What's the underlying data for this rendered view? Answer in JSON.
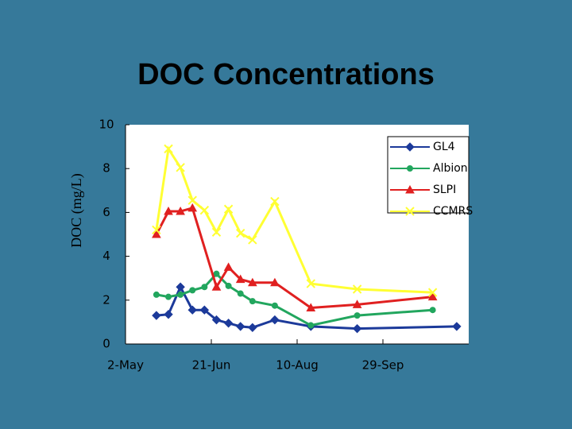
{
  "chart_data": {
    "type": "line",
    "title": "DOC Concentrations",
    "y_label": "DOC (mg/L)",
    "xlim": [
      "2-May",
      "18-Nov"
    ],
    "xticks": [
      "2-May",
      "21-Jun",
      "10-Aug",
      "29-Sep"
    ],
    "ylim": [
      0,
      10
    ],
    "yticks": [
      0,
      2,
      4,
      6,
      8,
      10
    ],
    "grid": false,
    "legend": "upper right",
    "series": [
      {
        "name": "GL4",
        "color": "#1c3a9a",
        "marker": "diamond",
        "x": [
          "20-May",
          "27-May",
          "3-Jun",
          "10-Jun",
          "17-Jun",
          "24-Jun",
          "1-Jul",
          "8-Jul",
          "15-Jul",
          "28-Jul",
          "18-Aug",
          "14-Sep",
          "11-Nov"
        ],
        "values": [
          1.3,
          1.35,
          2.6,
          1.55,
          1.55,
          1.1,
          0.95,
          0.8,
          0.75,
          1.1,
          0.8,
          0.7,
          0.8
        ]
      },
      {
        "name": "Albion",
        "color": "#22a65e",
        "marker": "circle",
        "x": [
          "20-May",
          "27-May",
          "3-Jun",
          "10-Jun",
          "17-Jun",
          "24-Jun",
          "1-Jul",
          "8-Jul",
          "15-Jul",
          "28-Jul",
          "18-Aug",
          "14-Sep",
          "28-Oct"
        ],
        "values": [
          2.25,
          2.15,
          2.25,
          2.45,
          2.6,
          3.2,
          2.65,
          2.3,
          1.95,
          1.75,
          0.85,
          1.3,
          1.55
        ]
      },
      {
        "name": "SLPI",
        "color": "#e02020",
        "marker": "triangle",
        "x": [
          "20-May",
          "27-May",
          "3-Jun",
          "10-Jun",
          "24-Jun",
          "1-Jul",
          "8-Jul",
          "15-Jul",
          "28-Jul",
          "18-Aug",
          "14-Sep",
          "28-Oct"
        ],
        "values": [
          5.0,
          6.05,
          6.05,
          6.2,
          2.6,
          3.5,
          2.95,
          2.8,
          2.8,
          1.65,
          1.8,
          2.15
        ]
      },
      {
        "name": "CCMRS",
        "color": "#ffff33",
        "marker": "x",
        "x": [
          "20-May",
          "27-May",
          "3-Jun",
          "10-Jun",
          "17-Jun",
          "24-Jun",
          "1-Jul",
          "8-Jul",
          "15-Jul",
          "28-Jul",
          "18-Aug",
          "14-Sep",
          "28-Oct"
        ],
        "values": [
          5.2,
          8.9,
          8.05,
          6.55,
          6.1,
          5.1,
          6.15,
          5.05,
          4.75,
          6.5,
          2.75,
          2.5,
          2.35
        ]
      }
    ]
  }
}
